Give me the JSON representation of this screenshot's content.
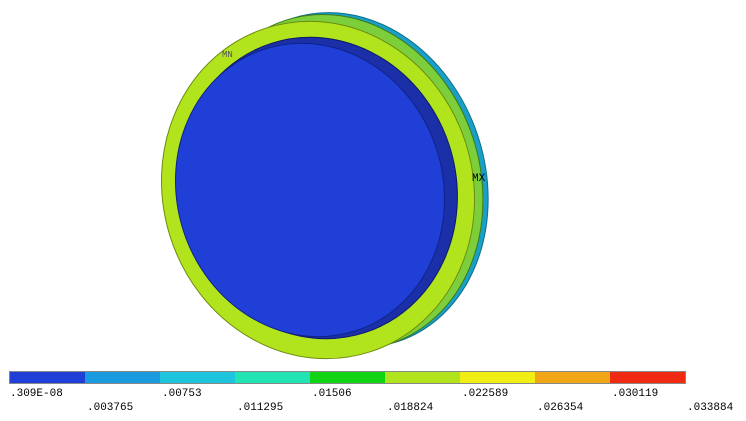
{
  "plot": {
    "max_marker": "MX",
    "min_marker": "MN"
  },
  "legend": {
    "colors": [
      "#1f3fd6",
      "#1a9be0",
      "#1ec3dc",
      "#22e3b4",
      "#10d414",
      "#b2e41e",
      "#f0ee14",
      "#f0a616",
      "#f02a12"
    ],
    "labels": [
      ".309E-08",
      ".003765",
      ".00753",
      ".011295",
      ".01506",
      ".018824",
      ".022589",
      ".026354",
      ".030119",
      ".033884"
    ]
  }
}
